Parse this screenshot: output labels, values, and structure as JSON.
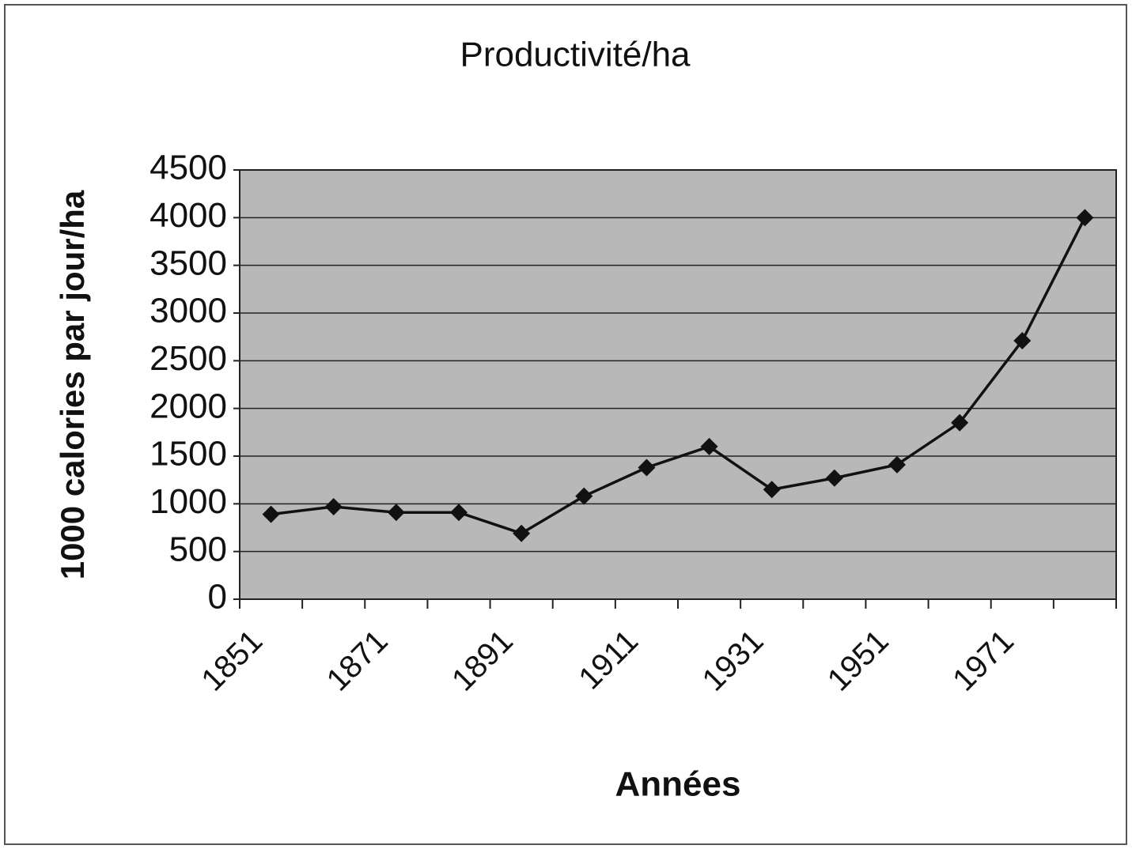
{
  "chart_data": {
    "type": "line",
    "title": "Productivité/ha",
    "x_label": "Années",
    "y_label": "1000 calories par jour/ha",
    "categories": [
      "1851",
      null,
      "1871",
      null,
      "1891",
      null,
      "1911",
      null,
      "1931",
      null,
      "1951",
      null,
      "1971",
      null
    ],
    "series": [
      {
        "name": "Productivité/ha",
        "color": "#111111",
        "values": [
          890,
          970,
          910,
          910,
          690,
          1080,
          1380,
          1600,
          1150,
          1270,
          1410,
          1850,
          2710,
          4000
        ]
      }
    ],
    "ylim": [
      0,
      4500
    ],
    "yticks": [
      0,
      500,
      1000,
      1500,
      2000,
      2500,
      3000,
      3500,
      4000,
      4500
    ],
    "grid": true,
    "plot_background": "#b8b8b8"
  }
}
